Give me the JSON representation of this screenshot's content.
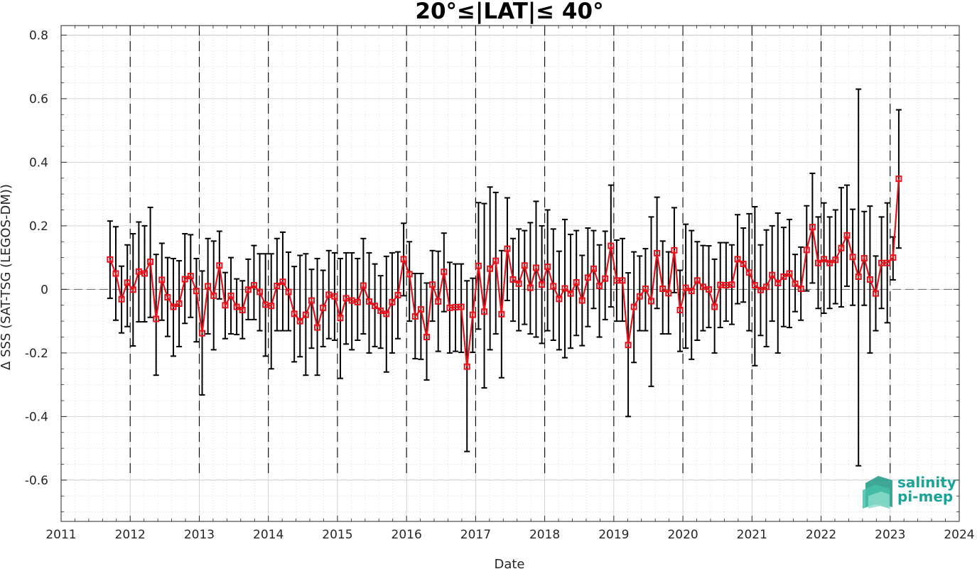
{
  "chart_data": {
    "type": "line",
    "title": "20°≤|LAT|≤ 40°",
    "xlabel": "Date",
    "ylabel": "Δ SSS (SAT-TSG (LEGOS-DM))",
    "xlim": [
      2011,
      2024
    ],
    "ylim": [
      -0.73,
      0.83
    ],
    "x_ticks": [
      "2011",
      "2012",
      "2013",
      "2014",
      "2015",
      "2016",
      "2017",
      "2018",
      "2019",
      "2020",
      "2021",
      "2022",
      "2023",
      "2024"
    ],
    "y_ticks": [
      "0.8",
      "0.6",
      "0.4",
      "0.2",
      "0",
      "-0.2",
      "-0.4",
      "-0.6"
    ],
    "grid": true,
    "year_separators": true,
    "zero_line": true,
    "series": [
      {
        "color": "#e8121b",
        "error_bar_color": "#000000",
        "start": "2011-09",
        "values": [
          0.094,
          0.05,
          -0.031,
          0.021,
          -0.001,
          0.056,
          0.05,
          0.087,
          -0.093,
          0.03,
          -0.025,
          -0.055,
          -0.045,
          0.032,
          0.042,
          -0.005,
          -0.138,
          0.01,
          -0.02,
          0.075,
          -0.05,
          -0.02,
          -0.055,
          -0.065,
          -0.001,
          0.013,
          -0.008,
          -0.048,
          -0.052,
          0.011,
          0.024,
          -0.008,
          -0.077,
          -0.1,
          -0.08,
          -0.035,
          -0.12,
          -0.058,
          -0.017,
          -0.022,
          -0.09,
          -0.028,
          -0.035,
          -0.04,
          0.012,
          -0.038,
          -0.052,
          -0.067,
          -0.077,
          -0.04,
          -0.018,
          0.095,
          0.048,
          -0.085,
          -0.063,
          -0.15,
          0.015,
          -0.038,
          0.055,
          -0.058,
          -0.056,
          -0.055,
          -0.243,
          -0.08,
          0.074,
          -0.07,
          0.065,
          0.09,
          -0.078,
          0.128,
          0.031,
          0.018,
          0.075,
          0.005,
          0.068,
          0.015,
          0.071,
          0.01,
          -0.03,
          0.003,
          -0.013,
          0.022,
          -0.035,
          0.037,
          0.065,
          0.011,
          0.034,
          0.137,
          0.028,
          0.028,
          -0.175,
          -0.055,
          -0.022,
          0.002,
          -0.037,
          0.114,
          0.002,
          -0.012,
          0.123,
          -0.065,
          0.005,
          -0.005,
          0.028,
          0.008,
          0.0,
          -0.055,
          0.014,
          0.013,
          0.015,
          0.095,
          0.08,
          0.053,
          0.013,
          -0.002,
          0.008,
          0.045,
          0.02,
          0.04,
          0.05,
          0.018,
          0.002,
          0.124,
          0.196,
          0.083,
          0.095,
          0.083,
          0.093,
          0.13,
          0.17,
          0.102,
          0.04,
          0.098,
          0.031,
          -0.013,
          0.083,
          0.083,
          0.1,
          0.348
        ],
        "lower": [
          -0.028,
          -0.097,
          -0.137,
          -0.117,
          -0.178,
          -0.102,
          -0.102,
          -0.088,
          -0.27,
          -0.097,
          -0.148,
          -0.21,
          -0.18,
          -0.107,
          -0.088,
          -0.165,
          -0.332,
          -0.14,
          -0.19,
          -0.03,
          -0.155,
          -0.14,
          -0.142,
          -0.155,
          -0.095,
          -0.095,
          -0.13,
          -0.21,
          -0.25,
          -0.13,
          -0.13,
          -0.13,
          -0.228,
          -0.212,
          -0.27,
          -0.185,
          -0.27,
          -0.18,
          -0.155,
          -0.16,
          -0.28,
          -0.172,
          -0.19,
          -0.16,
          -0.14,
          -0.2,
          -0.18,
          -0.185,
          -0.26,
          -0.2,
          -0.155,
          -0.02,
          -0.1,
          -0.218,
          -0.22,
          -0.285,
          -0.1,
          -0.195,
          -0.07,
          -0.2,
          -0.195,
          -0.198,
          -0.51,
          -0.198,
          -0.125,
          -0.31,
          -0.19,
          -0.14,
          -0.278,
          -0.035,
          -0.1,
          -0.13,
          -0.11,
          -0.14,
          -0.15,
          -0.17,
          -0.13,
          -0.16,
          -0.19,
          -0.215,
          -0.185,
          -0.145,
          -0.177,
          -0.117,
          -0.06,
          -0.15,
          -0.095,
          -0.055,
          -0.1,
          -0.1,
          -0.4,
          -0.23,
          -0.13,
          -0.13,
          -0.305,
          -0.06,
          -0.14,
          -0.14,
          -0.01,
          -0.195,
          -0.185,
          -0.22,
          -0.16,
          -0.13,
          -0.12,
          -0.2,
          -0.12,
          -0.1,
          -0.11,
          -0.045,
          -0.04,
          -0.13,
          -0.24,
          -0.145,
          -0.18,
          -0.1,
          -0.2,
          -0.117,
          -0.12,
          -0.07,
          -0.097,
          -0.005,
          0.02,
          -0.06,
          -0.075,
          -0.06,
          -0.045,
          -0.055,
          0.01,
          -0.05,
          -0.555,
          -0.05,
          -0.2,
          -0.13,
          -0.06,
          -0.105,
          0.03,
          0.13
        ],
        "upper": [
          0.215,
          0.197,
          0.073,
          0.14,
          0.175,
          0.212,
          0.2,
          0.258,
          0.11,
          0.145,
          0.1,
          0.097,
          0.09,
          0.175,
          0.172,
          0.097,
          0.058,
          0.16,
          0.152,
          0.183,
          0.053,
          0.1,
          0.033,
          0.027,
          0.095,
          0.138,
          0.112,
          0.112,
          0.112,
          0.16,
          0.18,
          0.117,
          0.072,
          0.107,
          0.112,
          0.063,
          0.097,
          0.06,
          0.122,
          0.115,
          0.097,
          0.115,
          0.115,
          0.097,
          0.16,
          0.115,
          0.08,
          0.043,
          0.104,
          0.115,
          0.118,
          0.208,
          0.15,
          0.05,
          0.05,
          0.02,
          0.122,
          0.12,
          0.177,
          0.085,
          0.08,
          0.08,
          0.027,
          0.035,
          0.273,
          0.27,
          0.322,
          0.305,
          0.122,
          0.288,
          0.16,
          0.19,
          0.185,
          0.21,
          0.277,
          0.2,
          0.25,
          0.19,
          0.12,
          0.22,
          0.173,
          0.185,
          0.107,
          0.193,
          0.185,
          0.14,
          0.183,
          0.328,
          0.155,
          0.16,
          0.052,
          0.118,
          0.105,
          0.128,
          0.228,
          0.29,
          0.152,
          0.118,
          0.257,
          0.06,
          0.205,
          0.185,
          0.15,
          0.138,
          0.137,
          0.095,
          0.147,
          0.147,
          0.14,
          0.235,
          0.193,
          0.238,
          0.26,
          0.14,
          0.187,
          0.2,
          0.24,
          0.195,
          0.22,
          0.11,
          0.133,
          0.263,
          0.365,
          0.228,
          0.272,
          0.228,
          0.25,
          0.32,
          0.328,
          0.252,
          0.63,
          0.245,
          0.262,
          0.105,
          0.228,
          0.272,
          0.165,
          0.565
        ]
      }
    ]
  },
  "logo": {
    "line1": "salinity",
    "line2": "pi-mep"
  }
}
